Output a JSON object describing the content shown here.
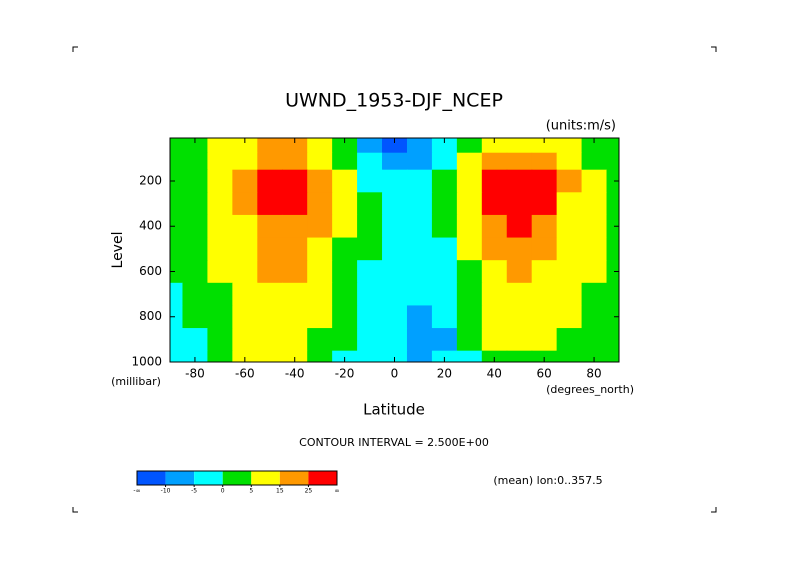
{
  "chart_data": {
    "type": "contour",
    "title": "UWND_1953-DJF_NCEP",
    "units": "(units:m/s)",
    "y_label": "Level",
    "y_unit": "(millibar)",
    "x_label": "Latitude",
    "x_unit": "(degrees_north)",
    "footnote": "CONTOUR INTERVAL = 2.500E+00",
    "region_note": "(mean) lon:0..357.5",
    "x": [
      -90,
      -80,
      -70,
      -60,
      -50,
      -40,
      -30,
      -20,
      -10,
      0,
      10,
      20,
      30,
      40,
      50,
      60,
      70,
      80,
      90
    ],
    "y": [
      50,
      100,
      200,
      300,
      400,
      500,
      600,
      700,
      800,
      900,
      1000
    ],
    "z": [
      [
        2,
        3,
        5,
        10,
        15,
        15,
        8,
        0,
        -8,
        -12,
        -10,
        -5,
        0,
        5,
        10,
        12,
        8,
        3,
        1
      ],
      [
        2,
        3,
        6,
        12,
        20,
        20,
        12,
        3,
        -5,
        -8,
        -6,
        -2,
        5,
        18,
        22,
        15,
        8,
        3,
        1
      ],
      [
        3,
        4,
        8,
        15,
        28,
        32,
        20,
        7,
        -2,
        -4,
        -3,
        2,
        12,
        35,
        40,
        28,
        15,
        8,
        3
      ],
      [
        3,
        4,
        8,
        15,
        26,
        30,
        20,
        7,
        0,
        -2,
        -1,
        1,
        10,
        30,
        36,
        25,
        14,
        8,
        3
      ],
      [
        3,
        4,
        7,
        14,
        22,
        24,
        16,
        5,
        0,
        -1,
        -1,
        0,
        8,
        24,
        28,
        20,
        12,
        7,
        3
      ],
      [
        2,
        3,
        6,
        12,
        18,
        19,
        12,
        4,
        0,
        -1,
        -2,
        -1,
        6,
        18,
        20,
        15,
        10,
        6,
        3
      ],
      [
        2,
        2,
        5,
        11,
        15,
        15,
        9,
        3,
        -1,
        -1,
        -3,
        -2,
        4,
        14,
        15,
        12,
        8,
        5,
        2
      ],
      [
        -1,
        1,
        4,
        10,
        13,
        12,
        7,
        2,
        -1,
        -2,
        -4,
        -3,
        2,
        11,
        12,
        9,
        6,
        4,
        2
      ],
      [
        -1,
        0,
        3,
        9,
        12,
        10,
        5,
        1,
        -2,
        -3,
        -6,
        -5,
        1,
        8,
        9,
        7,
        5,
        3,
        2
      ],
      [
        -1,
        -1,
        2,
        8,
        11,
        8,
        3,
        0,
        -3,
        -4,
        -7,
        -6,
        0,
        5,
        6,
        5,
        4,
        3,
        2
      ],
      [
        -1,
        -1,
        2,
        6,
        9,
        6,
        2,
        -1,
        -3,
        -4,
        -6,
        -5,
        -1,
        3,
        4,
        3,
        3,
        2,
        1
      ]
    ],
    "xlim": [
      -90,
      90
    ],
    "xticks": [
      -80,
      -60,
      -40,
      -20,
      0,
      20,
      40,
      60,
      80
    ],
    "ylim": [
      1000,
      10
    ],
    "yticks": [
      200,
      400,
      600,
      800,
      1000
    ],
    "colorbar": {
      "bounds": [
        -10,
        -5,
        0,
        5,
        15,
        25
      ],
      "end_labels": [
        "-∞",
        "∞"
      ],
      "colors": [
        "#0055ff",
        "#00a0ff",
        "#00ffff",
        "#00e000",
        "#ffff00",
        "#ff9900",
        "#ff0000"
      ]
    }
  }
}
